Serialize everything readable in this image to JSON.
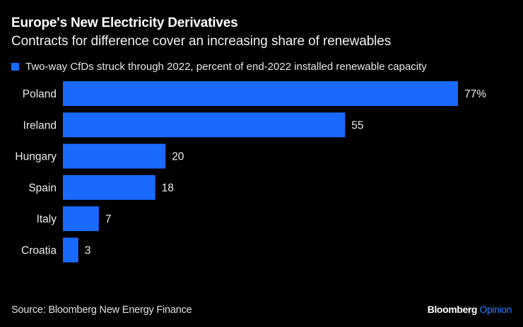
{
  "header": {
    "title": "Europe's New Electricity Derivatives",
    "subtitle": "Contracts for difference cover an increasing share of renewables"
  },
  "legend": {
    "label": "Two-way CfDs struck through 2022, percent of end-2022 installed renewable capacity",
    "color": "#1a6aff"
  },
  "footer": {
    "source": "Source: Bloomberg New Energy Finance",
    "brand_main": "Bloomberg",
    "brand_accent": "Opinion"
  },
  "chart_data": {
    "type": "bar",
    "orientation": "horizontal",
    "title": "Europe's New Electricity Derivatives",
    "subtitle": "Contracts for difference cover an increasing share of renewables",
    "categories": [
      "Poland",
      "Ireland",
      "Hungary",
      "Spain",
      "Italy",
      "Croatia"
    ],
    "series": [
      {
        "name": "Two-way CfDs struck through 2022, percent of end-2022 installed renewable capacity",
        "values": [
          77,
          55,
          20,
          18,
          7,
          3
        ],
        "color": "#1a6aff"
      }
    ],
    "data_labels": [
      "77%",
      "55",
      "20",
      "18",
      "7",
      "3"
    ],
    "xlabel": "",
    "ylabel": "",
    "xlim": [
      0,
      77
    ],
    "grid": false,
    "legend_position": "top-left"
  }
}
